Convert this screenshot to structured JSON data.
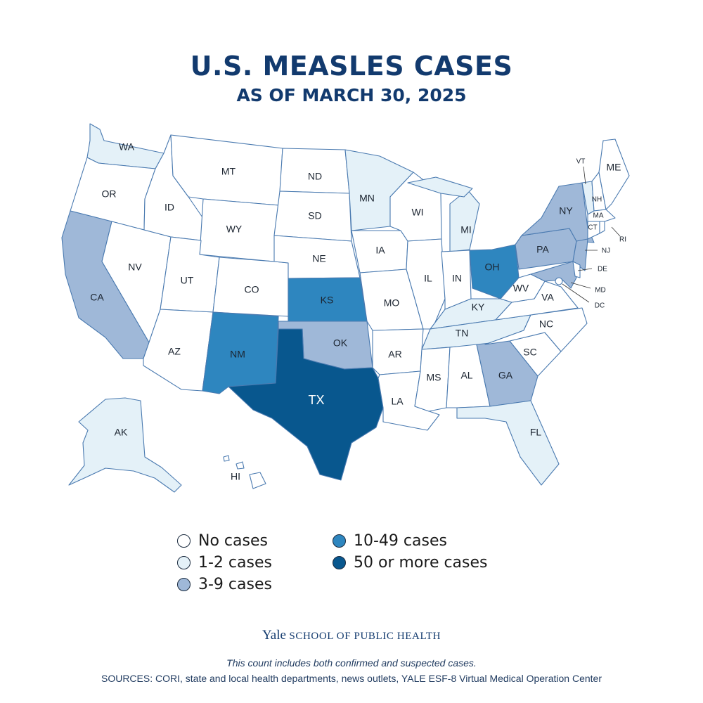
{
  "title": "U.S. MEASLES CASES",
  "subtitle": "AS OF MARCH 30, 2025",
  "colors": {
    "no_cases": "#ffffff",
    "one_to_two": "#e4f1f8",
    "three_to_nine": "#9fb8d8",
    "ten_to_49": "#2e86bf",
    "fifty_plus": "#08578e",
    "border": "#4a7ab0"
  },
  "legend": [
    {
      "label": "No cases",
      "category": "no_cases"
    },
    {
      "label": "1-2 cases",
      "category": "one_to_two"
    },
    {
      "label": "3-9 cases",
      "category": "three_to_nine"
    },
    {
      "label": "10-49 cases",
      "category": "ten_to_49"
    },
    {
      "label": "50 or more cases",
      "category": "fifty_plus"
    }
  ],
  "states": [
    {
      "abbr": "WA",
      "category": "one_to_two"
    },
    {
      "abbr": "OR",
      "category": "no_cases"
    },
    {
      "abbr": "CA",
      "category": "three_to_nine"
    },
    {
      "abbr": "NV",
      "category": "no_cases"
    },
    {
      "abbr": "ID",
      "category": "no_cases"
    },
    {
      "abbr": "MT",
      "category": "no_cases"
    },
    {
      "abbr": "WY",
      "category": "no_cases"
    },
    {
      "abbr": "UT",
      "category": "no_cases"
    },
    {
      "abbr": "AZ",
      "category": "no_cases"
    },
    {
      "abbr": "CO",
      "category": "no_cases"
    },
    {
      "abbr": "NM",
      "category": "ten_to_49"
    },
    {
      "abbr": "ND",
      "category": "no_cases"
    },
    {
      "abbr": "SD",
      "category": "no_cases"
    },
    {
      "abbr": "NE",
      "category": "no_cases"
    },
    {
      "abbr": "KS",
      "category": "ten_to_49"
    },
    {
      "abbr": "OK",
      "category": "three_to_nine"
    },
    {
      "abbr": "TX",
      "category": "fifty_plus"
    },
    {
      "abbr": "MN",
      "category": "one_to_two"
    },
    {
      "abbr": "IA",
      "category": "no_cases"
    },
    {
      "abbr": "MO",
      "category": "no_cases"
    },
    {
      "abbr": "AR",
      "category": "no_cases"
    },
    {
      "abbr": "LA",
      "category": "no_cases"
    },
    {
      "abbr": "WI",
      "category": "no_cases"
    },
    {
      "abbr": "IL",
      "category": "no_cases"
    },
    {
      "abbr": "MI",
      "category": "one_to_two"
    },
    {
      "abbr": "IN",
      "category": "no_cases"
    },
    {
      "abbr": "OH",
      "category": "ten_to_49"
    },
    {
      "abbr": "KY",
      "category": "one_to_two"
    },
    {
      "abbr": "TN",
      "category": "one_to_two"
    },
    {
      "abbr": "MS",
      "category": "no_cases"
    },
    {
      "abbr": "AL",
      "category": "no_cases"
    },
    {
      "abbr": "GA",
      "category": "three_to_nine"
    },
    {
      "abbr": "FL",
      "category": "one_to_two"
    },
    {
      "abbr": "SC",
      "category": "no_cases"
    },
    {
      "abbr": "NC",
      "category": "no_cases"
    },
    {
      "abbr": "VA",
      "category": "no_cases"
    },
    {
      "abbr": "WV",
      "category": "no_cases"
    },
    {
      "abbr": "PA",
      "category": "three_to_nine"
    },
    {
      "abbr": "NY",
      "category": "three_to_nine"
    },
    {
      "abbr": "VT",
      "category": "one_to_two"
    },
    {
      "abbr": "NH",
      "category": "no_cases"
    },
    {
      "abbr": "ME",
      "category": "no_cases"
    },
    {
      "abbr": "MA",
      "category": "no_cases"
    },
    {
      "abbr": "CT",
      "category": "no_cases"
    },
    {
      "abbr": "RI",
      "category": "no_cases"
    },
    {
      "abbr": "NJ",
      "category": "three_to_nine"
    },
    {
      "abbr": "DE",
      "category": "no_cases"
    },
    {
      "abbr": "MD",
      "category": "three_to_nine"
    },
    {
      "abbr": "DC",
      "category": "no_cases"
    },
    {
      "abbr": "AK",
      "category": "one_to_two"
    },
    {
      "abbr": "HI",
      "category": "no_cases"
    }
  ],
  "footer": {
    "institution_name": "Yale",
    "institution_unit": "SCHOOL OF PUBLIC HEALTH",
    "note": "This count includes both confirmed and suspected cases.",
    "sources": "SOURCES: CORI, state and local health departments, news outlets, YALE ESF-8 Virtual Medical Operation Center"
  }
}
